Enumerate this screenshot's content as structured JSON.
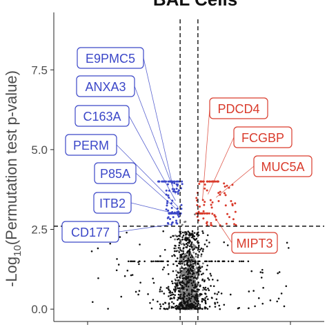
{
  "chart_data": {
    "type": "scatter",
    "title": "BAL Cells",
    "xlabel": "",
    "ylabel": "-Log10(Permutation test p-value)",
    "ylabel_parts": {
      "prefix": "-Log",
      "subscript": "10",
      "suffix": "(Permutation test p-value)"
    },
    "ylim": [
      -0.3,
      9.3
    ],
    "xlim": [
      -1.0,
      1.0
    ],
    "yticks": [
      0.0,
      2.5,
      5.0,
      7.5
    ],
    "ytick_labels": [
      "0.0",
      "2.5",
      "5.0",
      "7.5"
    ],
    "threshold_y": 2.6,
    "threshold_x": [
      -0.03,
      0.03
    ],
    "grid": false,
    "colors": {
      "down": "#3b47c8",
      "up": "#d93a2b",
      "ns": "#111111",
      "center": "#7a7a7a"
    },
    "labeled_points": {
      "down": [
        {
          "label": "E9PMC5",
          "x": -0.12,
          "y": 3.85
        },
        {
          "label": "ANXA3",
          "x": -0.1,
          "y": 3.6
        },
        {
          "label": "C163A",
          "x": -0.1,
          "y": 3.4
        },
        {
          "label": "PERM",
          "x": -0.08,
          "y": 3.2
        },
        {
          "label": "P85A",
          "x": -0.07,
          "y": 3.05
        },
        {
          "label": "ITB2",
          "x": -0.06,
          "y": 2.95
        },
        {
          "label": "CD177",
          "x": -0.14,
          "y": 2.65
        }
      ],
      "up": [
        {
          "label": "PDCD4",
          "x": 0.1,
          "y": 3.45
        },
        {
          "label": "FCGBP",
          "x": 0.14,
          "y": 3.6
        },
        {
          "label": "MUC5A",
          "x": 0.2,
          "y": 3.5
        },
        {
          "label": "MIPT3",
          "x": 0.18,
          "y": 2.95
        }
      ]
    },
    "label_box_order_down": [
      "E9PMC5",
      "ANXA3",
      "C163A",
      "PERM",
      "P85A",
      "ITB2",
      "CD177"
    ],
    "label_box_order_up": [
      "PDCD4",
      "FCGBP",
      "MUC5A",
      "MIPT3"
    ]
  }
}
